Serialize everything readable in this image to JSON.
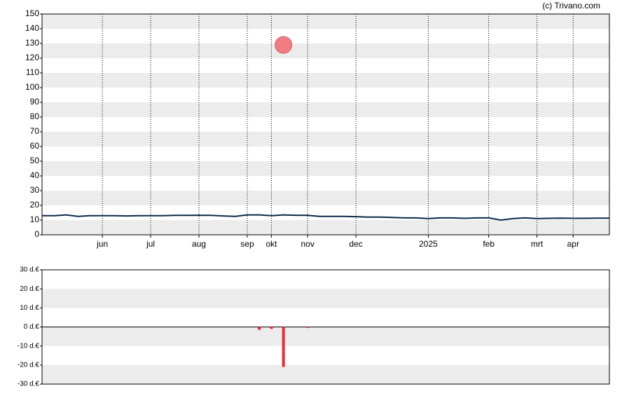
{
  "credit": "(c) Trivano.com",
  "chart_data": [
    {
      "type": "line",
      "categories": [
        null,
        null,
        null,
        null,
        null,
        "jun",
        null,
        null,
        null,
        "jul",
        null,
        null,
        null,
        "aug",
        null,
        null,
        null,
        "sep",
        null,
        "okt",
        null,
        null,
        "nov",
        null,
        null,
        null,
        "dec",
        null,
        null,
        null,
        null,
        null,
        "2025",
        null,
        null,
        null,
        null,
        "feb",
        null,
        null,
        null,
        "mrt",
        null,
        null,
        "apr",
        null,
        null,
        null
      ],
      "series": [
        {
          "color": "#0b2a4a",
          "values": [
            13,
            13,
            13.5,
            12.5,
            13,
            13,
            13,
            12.8,
            13,
            13,
            13,
            13.2,
            13.2,
            13.3,
            13.2,
            12.8,
            12.5,
            13.5,
            13.5,
            13,
            13.5,
            13.3,
            13.2,
            12.5,
            12.5,
            12.5,
            12.3,
            12,
            12,
            11.8,
            11.5,
            11.5,
            11,
            11.5,
            11.5,
            11.2,
            11.5,
            11.5,
            10,
            11,
            11.5,
            11,
            11.2,
            11.3,
            11.2,
            11.2,
            11.3,
            11.3
          ]
        },
        {
          "type": "scatter",
          "color": "#f07c84",
          "values": [
            null,
            null,
            null,
            null,
            null,
            null,
            null,
            null,
            null,
            null,
            null,
            null,
            null,
            null,
            null,
            null,
            null,
            null,
            null,
            null,
            129,
            null,
            null,
            null,
            null,
            null,
            null,
            null,
            null,
            null,
            null,
            null,
            null,
            null,
            null,
            null,
            null,
            null,
            null,
            null,
            null,
            null,
            null,
            null,
            null,
            null,
            null,
            null
          ]
        }
      ],
      "ylim": [
        0,
        150
      ],
      "yticks": [
        0,
        10,
        20,
        30,
        40,
        50,
        60,
        70,
        80,
        90,
        100,
        110,
        120,
        130,
        140,
        150
      ],
      "grid": true
    },
    {
      "type": "bar",
      "color": "#e0303c",
      "values": [
        null,
        null,
        null,
        null,
        null,
        null,
        null,
        null,
        null,
        null,
        null,
        null,
        null,
        null,
        null,
        null,
        null,
        null,
        -1.5,
        -1,
        -21,
        null,
        -0.5,
        null,
        null,
        null,
        null,
        null,
        null,
        null,
        null,
        null,
        null,
        null,
        null,
        null,
        null,
        null,
        null,
        null,
        null,
        null,
        null,
        null,
        null,
        null,
        null,
        null
      ],
      "ylim": [
        -30,
        30
      ],
      "yticks": [
        {
          "value": -30,
          "label": "-30 d.€"
        },
        {
          "value": -20,
          "label": "-20 d.€"
        },
        {
          "value": -10,
          "label": "-10 d.€"
        },
        {
          "value": 0,
          "label": "0 d.€"
        },
        {
          "value": 10,
          "label": "10 d.€"
        },
        {
          "value": 20,
          "label": "20 d.€"
        },
        {
          "value": 30,
          "label": "30 d.€"
        }
      ],
      "grid": true
    }
  ]
}
